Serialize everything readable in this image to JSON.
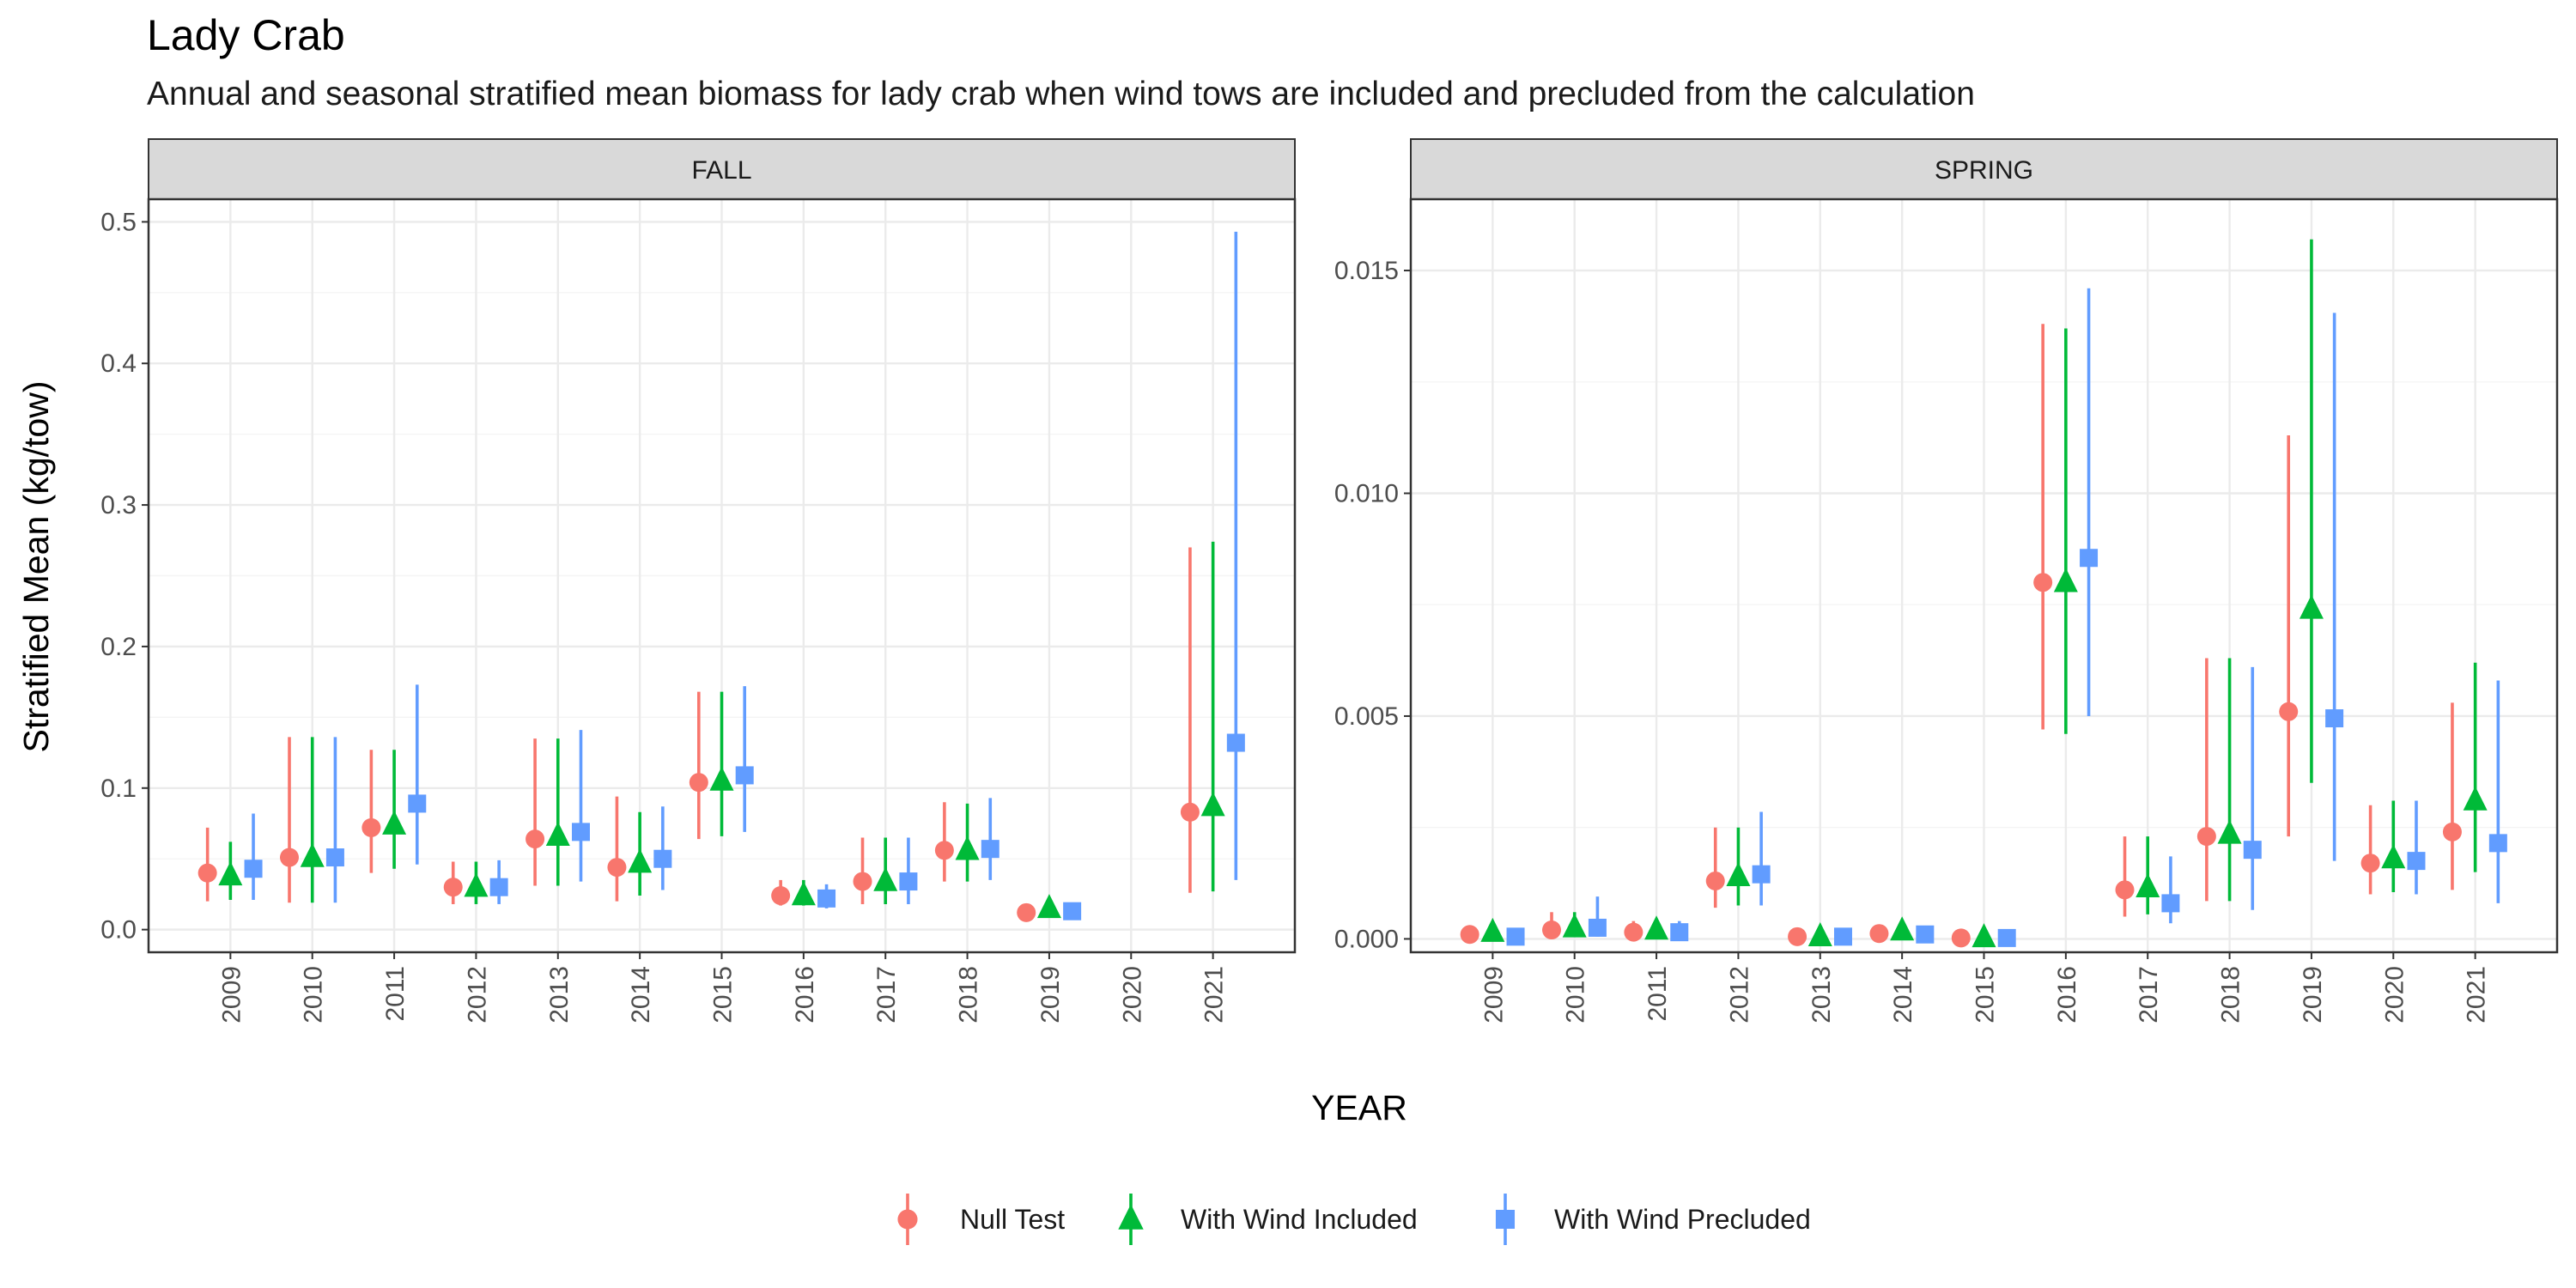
{
  "title": "Lady Crab",
  "subtitle": "Annual and seasonal stratified mean biomass for lady crab when wind tows are included and precluded from the calculation",
  "chart_data": {
    "type": "scatter",
    "xlabel": "YEAR",
    "ylabel": "Stratified Mean (kg/tow)",
    "grid": true,
    "legend_position": "bottom",
    "categories": [
      "2009",
      "2010",
      "2011",
      "2012",
      "2013",
      "2014",
      "2015",
      "2016",
      "2017",
      "2018",
      "2019",
      "2020",
      "2021"
    ],
    "series": [
      {
        "name": "Null Test",
        "color": "#F8766D",
        "shape": "circle"
      },
      {
        "name": "With Wind Included",
        "color": "#00BA38",
        "shape": "triangle"
      },
      {
        "name": "With Wind Precluded",
        "color": "#619CFF",
        "shape": "square"
      }
    ],
    "panels": [
      {
        "label": "FALL",
        "ylim": [
          -0.016,
          0.516
        ],
        "yticks": [
          0.0,
          0.1,
          0.2,
          0.3,
          0.4,
          0.5
        ],
        "ytick_labels": [
          "0.0",
          "0.1",
          "0.2",
          "0.3",
          "0.4",
          "0.5"
        ],
        "series_values": [
          {
            "name": "Null Test",
            "points": [
              {
                "x": "2009",
                "y": 0.04,
                "lo": 0.02,
                "hi": 0.072
              },
              {
                "x": "2010",
                "y": 0.051,
                "lo": 0.019,
                "hi": 0.136
              },
              {
                "x": "2011",
                "y": 0.072,
                "lo": 0.04,
                "hi": 0.127
              },
              {
                "x": "2012",
                "y": 0.03,
                "lo": 0.018,
                "hi": 0.048
              },
              {
                "x": "2013",
                "y": 0.064,
                "lo": 0.031,
                "hi": 0.135
              },
              {
                "x": "2014",
                "y": 0.044,
                "lo": 0.02,
                "hi": 0.094
              },
              {
                "x": "2015",
                "y": 0.104,
                "lo": 0.064,
                "hi": 0.168
              },
              {
                "x": "2016",
                "y": 0.024,
                "lo": 0.017,
                "hi": 0.035
              },
              {
                "x": "2017",
                "y": 0.034,
                "lo": 0.018,
                "hi": 0.065
              },
              {
                "x": "2018",
                "y": 0.056,
                "lo": 0.034,
                "hi": 0.09
              },
              {
                "x": "2019",
                "y": 0.012,
                "lo": 0.009,
                "hi": 0.016
              },
              {
                "x": "2021",
                "y": 0.083,
                "lo": 0.026,
                "hi": 0.27
              }
            ]
          },
          {
            "name": "With Wind Included",
            "points": [
              {
                "x": "2009",
                "y": 0.038,
                "lo": 0.021,
                "hi": 0.062
              },
              {
                "x": "2010",
                "y": 0.051,
                "lo": 0.019,
                "hi": 0.136
              },
              {
                "x": "2011",
                "y": 0.074,
                "lo": 0.043,
                "hi": 0.127
              },
              {
                "x": "2012",
                "y": 0.03,
                "lo": 0.018,
                "hi": 0.048
              },
              {
                "x": "2013",
                "y": 0.066,
                "lo": 0.031,
                "hi": 0.135
              },
              {
                "x": "2014",
                "y": 0.047,
                "lo": 0.024,
                "hi": 0.083
              },
              {
                "x": "2015",
                "y": 0.105,
                "lo": 0.066,
                "hi": 0.168
              },
              {
                "x": "2016",
                "y": 0.024,
                "lo": 0.017,
                "hi": 0.035
              },
              {
                "x": "2017",
                "y": 0.034,
                "lo": 0.018,
                "hi": 0.065
              },
              {
                "x": "2018",
                "y": 0.056,
                "lo": 0.034,
                "hi": 0.089
              },
              {
                "x": "2019",
                "y": 0.015,
                "lo": 0.011,
                "hi": 0.019
              },
              {
                "x": "2021",
                "y": 0.087,
                "lo": 0.027,
                "hi": 0.274
              }
            ]
          },
          {
            "name": "With Wind Precluded",
            "points": [
              {
                "x": "2009",
                "y": 0.043,
                "lo": 0.021,
                "hi": 0.082
              },
              {
                "x": "2010",
                "y": 0.051,
                "lo": 0.019,
                "hi": 0.136
              },
              {
                "x": "2011",
                "y": 0.089,
                "lo": 0.046,
                "hi": 0.173
              },
              {
                "x": "2012",
                "y": 0.03,
                "lo": 0.018,
                "hi": 0.049
              },
              {
                "x": "2013",
                "y": 0.069,
                "lo": 0.034,
                "hi": 0.141
              },
              {
                "x": "2014",
                "y": 0.05,
                "lo": 0.028,
                "hi": 0.087
              },
              {
                "x": "2015",
                "y": 0.109,
                "lo": 0.069,
                "hi": 0.172
              },
              {
                "x": "2016",
                "y": 0.022,
                "lo": 0.015,
                "hi": 0.032
              },
              {
                "x": "2017",
                "y": 0.034,
                "lo": 0.018,
                "hi": 0.065
              },
              {
                "x": "2018",
                "y": 0.057,
                "lo": 0.035,
                "hi": 0.093
              },
              {
                "x": "2019",
                "y": 0.013,
                "lo": 0.009,
                "hi": 0.018
              },
              {
                "x": "2021",
                "y": 0.132,
                "lo": 0.035,
                "hi": 0.493
              }
            ]
          }
        ]
      },
      {
        "label": "SPRING",
        "ylim": [
          -0.0003,
          0.0166
        ],
        "yticks": [
          0.0,
          0.005,
          0.01,
          0.015
        ],
        "ytick_labels": [
          "0.000",
          "0.005",
          "0.010",
          "0.015"
        ],
        "series_values": [
          {
            "name": "Null Test",
            "points": [
              {
                "x": "2009",
                "y": 0.0001,
                "lo": 5e-05,
                "hi": 0.00015
              },
              {
                "x": "2010",
                "y": 0.0002,
                "lo": 5e-05,
                "hi": 0.0006
              },
              {
                "x": "2011",
                "y": 0.00015,
                "lo": 5e-05,
                "hi": 0.0004
              },
              {
                "x": "2012",
                "y": 0.0013,
                "lo": 0.0007,
                "hi": 0.0025
              },
              {
                "x": "2013",
                "y": 5e-05,
                "lo": 1e-05,
                "hi": 0.0001
              },
              {
                "x": "2014",
                "y": 0.00012,
                "lo": 5e-05,
                "hi": 0.00025
              },
              {
                "x": "2015",
                "y": 2e-05,
                "lo": 1e-05,
                "hi": 4e-05
              },
              {
                "x": "2016",
                "y": 0.008,
                "lo": 0.0047,
                "hi": 0.0138
              },
              {
                "x": "2017",
                "y": 0.0011,
                "lo": 0.0005,
                "hi": 0.0023
              },
              {
                "x": "2018",
                "y": 0.0023,
                "lo": 0.00085,
                "hi": 0.0063
              },
              {
                "x": "2019",
                "y": 0.0051,
                "lo": 0.0023,
                "hi": 0.0113
              },
              {
                "x": "2020",
                "y": 0.0017,
                "lo": 0.001,
                "hi": 0.003
              },
              {
                "x": "2021",
                "y": 0.0024,
                "lo": 0.0011,
                "hi": 0.0053
              }
            ]
          },
          {
            "name": "With Wind Included",
            "points": [
              {
                "x": "2009",
                "y": 0.00015,
                "lo": 5e-05,
                "hi": 0.0002
              },
              {
                "x": "2010",
                "y": 0.00025,
                "lo": 5e-05,
                "hi": 0.0006
              },
              {
                "x": "2011",
                "y": 0.0002,
                "lo": 5e-05,
                "hi": 0.0004
              },
              {
                "x": "2012",
                "y": 0.0014,
                "lo": 0.00075,
                "hi": 0.0025
              },
              {
                "x": "2013",
                "y": 5e-05,
                "lo": 1e-05,
                "hi": 0.0001
              },
              {
                "x": "2014",
                "y": 0.00018,
                "lo": 8e-05,
                "hi": 0.0003
              },
              {
                "x": "2015",
                "y": 3e-05,
                "lo": 1e-05,
                "hi": 5e-05
              },
              {
                "x": "2016",
                "y": 0.008,
                "lo": 0.0046,
                "hi": 0.0137
              },
              {
                "x": "2017",
                "y": 0.00115,
                "lo": 0.00055,
                "hi": 0.0023
              },
              {
                "x": "2018",
                "y": 0.00235,
                "lo": 0.00085,
                "hi": 0.0063
              },
              {
                "x": "2019",
                "y": 0.0074,
                "lo": 0.0035,
                "hi": 0.0157
              },
              {
                "x": "2020",
                "y": 0.0018,
                "lo": 0.00105,
                "hi": 0.0031
              },
              {
                "x": "2021",
                "y": 0.0031,
                "lo": 0.0015,
                "hi": 0.0062
              }
            ]
          },
          {
            "name": "With Wind Precluded",
            "points": [
              {
                "x": "2009",
                "y": 5e-05,
                "lo": 2e-05,
                "hi": 0.0001
              },
              {
                "x": "2010",
                "y": 0.00025,
                "lo": 5e-05,
                "hi": 0.00095
              },
              {
                "x": "2011",
                "y": 0.00015,
                "lo": 5e-05,
                "hi": 0.0004
              },
              {
                "x": "2012",
                "y": 0.00145,
                "lo": 0.00075,
                "hi": 0.00285
              },
              {
                "x": "2013",
                "y": 5e-05,
                "lo": 1e-05,
                "hi": 0.0001
              },
              {
                "x": "2014",
                "y": 0.0001,
                "lo": 4e-05,
                "hi": 0.00025
              },
              {
                "x": "2015",
                "y": 2e-05,
                "lo": 1e-05,
                "hi": 4e-05
              },
              {
                "x": "2016",
                "y": 0.00855,
                "lo": 0.005,
                "hi": 0.0146
              },
              {
                "x": "2017",
                "y": 0.0008,
                "lo": 0.00035,
                "hi": 0.00185
              },
              {
                "x": "2018",
                "y": 0.002,
                "lo": 0.00065,
                "hi": 0.0061
              },
              {
                "x": "2019",
                "y": 0.00495,
                "lo": 0.00175,
                "hi": 0.01405
              },
              {
                "x": "2020",
                "y": 0.00175,
                "lo": 0.001,
                "hi": 0.0031
              },
              {
                "x": "2021",
                "y": 0.00215,
                "lo": 0.0008,
                "hi": 0.0058
              }
            ]
          }
        ]
      }
    ]
  }
}
